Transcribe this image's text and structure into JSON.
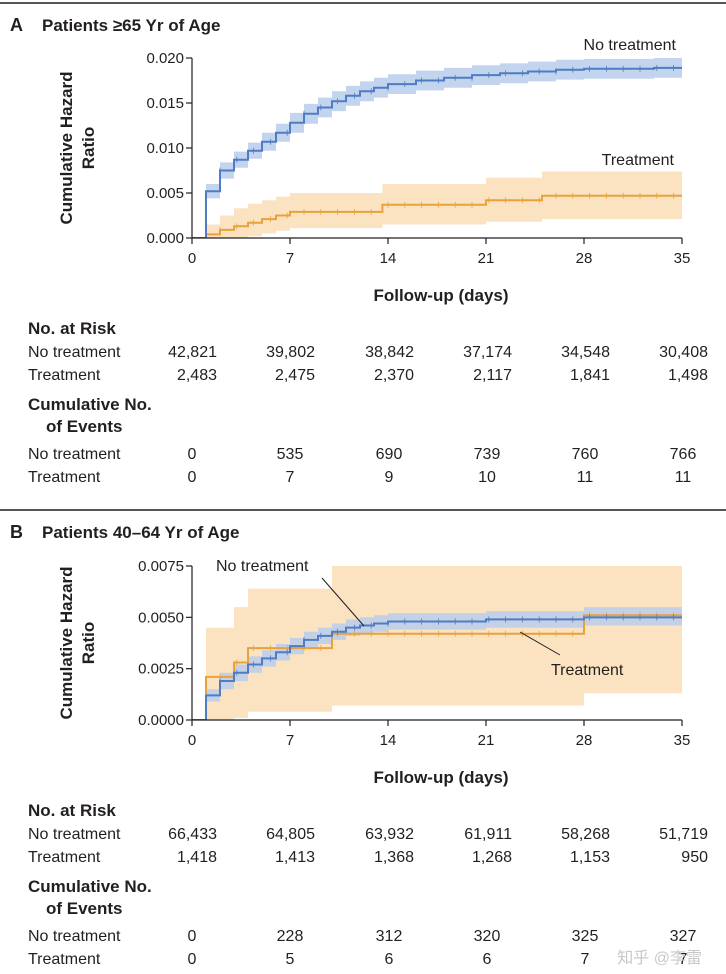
{
  "panels": [
    {
      "letter": "A",
      "title": "Patients ≥65 Yr of Age",
      "chart_data": {
        "type": "line",
        "ylabel": "Cumulative Hazard Ratio",
        "xlabel": "Follow-up (days)",
        "xlim": [
          0,
          35
        ],
        "ylim": [
          0,
          0.02
        ],
        "xticks": [
          0,
          7,
          14,
          21,
          28,
          35
        ],
        "yticks": [
          "0.000",
          "0.005",
          "0.010",
          "0.015",
          "0.020"
        ],
        "yvals": [
          0,
          0.005,
          0.01,
          0.015,
          0.02
        ],
        "series": [
          {
            "name": "No treatment",
            "color": "#4f7cc2",
            "band_color": "#b8cdeb",
            "steps": [
              [
                0,
                0
              ],
              [
                1,
                0.0052
              ],
              [
                2,
                0.0075
              ],
              [
                3,
                0.0087
              ],
              [
                4,
                0.0097
              ],
              [
                5,
                0.0107
              ],
              [
                6,
                0.0117
              ],
              [
                7,
                0.0128
              ],
              [
                8,
                0.0138
              ],
              [
                9,
                0.0145
              ],
              [
                10,
                0.0152
              ],
              [
                11,
                0.0158
              ],
              [
                12,
                0.0163
              ],
              [
                13,
                0.0167
              ],
              [
                14,
                0.0171
              ],
              [
                16,
                0.0175
              ],
              [
                18,
                0.0178
              ],
              [
                20,
                0.0181
              ],
              [
                22,
                0.0183
              ],
              [
                24,
                0.0185
              ],
              [
                26,
                0.0187
              ],
              [
                28,
                0.0188
              ],
              [
                31,
                0.0188
              ],
              [
                33,
                0.0189
              ],
              [
                35,
                0.0189
              ]
            ],
            "lower": [
              [
                0,
                0
              ],
              [
                1,
                0.0044
              ],
              [
                2,
                0.0066
              ],
              [
                3,
                0.0078
              ],
              [
                4,
                0.0088
              ],
              [
                5,
                0.0097
              ],
              [
                6,
                0.0107
              ],
              [
                7,
                0.0117
              ],
              [
                8,
                0.0127
              ],
              [
                9,
                0.0134
              ],
              [
                10,
                0.0141
              ],
              [
                11,
                0.0147
              ],
              [
                12,
                0.0152
              ],
              [
                13,
                0.0156
              ],
              [
                14,
                0.016
              ],
              [
                16,
                0.0164
              ],
              [
                18,
                0.0167
              ],
              [
                20,
                0.017
              ],
              [
                22,
                0.0172
              ],
              [
                24,
                0.0174
              ],
              [
                26,
                0.0176
              ],
              [
                28,
                0.0177
              ],
              [
                31,
                0.0177
              ],
              [
                33,
                0.0178
              ],
              [
                35,
                0.0178
              ]
            ],
            "upper": [
              [
                0,
                0
              ],
              [
                1,
                0.006
              ],
              [
                2,
                0.0084
              ],
              [
                3,
                0.0096
              ],
              [
                4,
                0.0106
              ],
              [
                5,
                0.0117
              ],
              [
                6,
                0.0127
              ],
              [
                7,
                0.0139
              ],
              [
                8,
                0.0149
              ],
              [
                9,
                0.0156
              ],
              [
                10,
                0.0163
              ],
              [
                11,
                0.0169
              ],
              [
                12,
                0.0174
              ],
              [
                13,
                0.0178
              ],
              [
                14,
                0.0182
              ],
              [
                16,
                0.0186
              ],
              [
                18,
                0.0189
              ],
              [
                20,
                0.0192
              ],
              [
                22,
                0.0194
              ],
              [
                24,
                0.0196
              ],
              [
                26,
                0.0198
              ],
              [
                28,
                0.0199
              ],
              [
                31,
                0.0199
              ],
              [
                33,
                0.02
              ],
              [
                35,
                0.02
              ]
            ],
            "label": "No treatment"
          },
          {
            "name": "Treatment",
            "color": "#e8a23c",
            "band_color": "#fbe0bb",
            "steps": [
              [
                0,
                0
              ],
              [
                1,
                0.0004
              ],
              [
                2,
                0.0009
              ],
              [
                3,
                0.0013
              ],
              [
                4,
                0.0017
              ],
              [
                5,
                0.0021
              ],
              [
                6,
                0.0025
              ],
              [
                7,
                0.0029
              ],
              [
                13.6,
                0.0037
              ],
              [
                21,
                0.0042
              ],
              [
                25,
                0.0047
              ],
              [
                35,
                0.0047
              ]
            ],
            "lower": [
              [
                0,
                0
              ],
              [
                1,
                0
              ],
              [
                2,
                0
              ],
              [
                3,
                0
              ],
              [
                4,
                0.0002
              ],
              [
                5,
                0.0005
              ],
              [
                6,
                0.0008
              ],
              [
                7,
                0.0011
              ],
              [
                13.6,
                0.0015
              ],
              [
                21,
                0.0018
              ],
              [
                25,
                0.0021
              ],
              [
                35,
                0.0021
              ]
            ],
            "upper": [
              [
                0,
                0
              ],
              [
                1,
                0.0015
              ],
              [
                2,
                0.0025
              ],
              [
                3,
                0.0033
              ],
              [
                4,
                0.0038
              ],
              [
                5,
                0.0042
              ],
              [
                6,
                0.0046
              ],
              [
                7,
                0.005
              ],
              [
                13.6,
                0.006
              ],
              [
                21,
                0.0067
              ],
              [
                25,
                0.0074
              ],
              [
                35,
                0.0074
              ]
            ],
            "label": "Treatment"
          }
        ]
      },
      "table": {
        "risk_header": "No. at Risk",
        "events_header_line1": "Cumulative No.",
        "events_header_line2": "of Events",
        "rows_risk": [
          {
            "label": "No treatment",
            "values": [
              "42,821",
              "39,802",
              "38,842",
              "37,174",
              "34,548",
              "30,408"
            ]
          },
          {
            "label": "Treatment",
            "values": [
              "2,483",
              "2,475",
              "2,370",
              "2,117",
              "1,841",
              "1,498"
            ]
          }
        ],
        "rows_events": [
          {
            "label": "No treatment",
            "values": [
              "0",
              "535",
              "690",
              "739",
              "760",
              "766"
            ]
          },
          {
            "label": "Treatment",
            "values": [
              "0",
              "7",
              "9",
              "10",
              "11",
              "11"
            ]
          }
        ]
      }
    },
    {
      "letter": "B",
      "title": "Patients 40–64 Yr of Age",
      "chart_data": {
        "type": "line",
        "ylabel": "Cumulative Hazard Ratio",
        "xlabel": "Follow-up (days)",
        "xlim": [
          0,
          35
        ],
        "ylim": [
          0,
          0.0075
        ],
        "xticks": [
          0,
          7,
          14,
          21,
          28,
          35
        ],
        "yticks": [
          "0.0000",
          "0.0025",
          "0.0050",
          "0.0075"
        ],
        "yvals": [
          0,
          0.0025,
          0.005,
          0.0075
        ],
        "series": [
          {
            "name": "No treatment",
            "color": "#4f7cc2",
            "band_color": "#b8cdeb",
            "steps": [
              [
                0,
                0
              ],
              [
                1,
                0.0012
              ],
              [
                2,
                0.0019
              ],
              [
                3,
                0.0023
              ],
              [
                4,
                0.0027
              ],
              [
                5,
                0.003
              ],
              [
                6,
                0.0033
              ],
              [
                7,
                0.0036
              ],
              [
                8,
                0.0039
              ],
              [
                9,
                0.0041
              ],
              [
                10,
                0.0043
              ],
              [
                11,
                0.0045
              ],
              [
                12,
                0.0046
              ],
              [
                13,
                0.0047
              ],
              [
                14,
                0.0048
              ],
              [
                17,
                0.0048
              ],
              [
                21,
                0.0049
              ],
              [
                28,
                0.005
              ],
              [
                35,
                0.005
              ]
            ],
            "lower": [
              [
                0,
                0
              ],
              [
                1,
                0.0009
              ],
              [
                2,
                0.0015
              ],
              [
                3,
                0.0019
              ],
              [
                4,
                0.0023
              ],
              [
                5,
                0.0026
              ],
              [
                6,
                0.0029
              ],
              [
                7,
                0.0032
              ],
              [
                8,
                0.0035
              ],
              [
                9,
                0.0037
              ],
              [
                10,
                0.0039
              ],
              [
                11,
                0.0041
              ],
              [
                12,
                0.0042
              ],
              [
                13,
                0.0043
              ],
              [
                14,
                0.0044
              ],
              [
                17,
                0.0044
              ],
              [
                21,
                0.0045
              ],
              [
                28,
                0.0046
              ],
              [
                35,
                0.0046
              ]
            ],
            "upper": [
              [
                0,
                0
              ],
              [
                1,
                0.0015
              ],
              [
                2,
                0.0023
              ],
              [
                3,
                0.0027
              ],
              [
                4,
                0.0031
              ],
              [
                5,
                0.0034
              ],
              [
                6,
                0.0037
              ],
              [
                7,
                0.004
              ],
              [
                8,
                0.0043
              ],
              [
                9,
                0.0045
              ],
              [
                10,
                0.0047
              ],
              [
                11,
                0.0049
              ],
              [
                12,
                0.005
              ],
              [
                13,
                0.0051
              ],
              [
                14,
                0.0052
              ],
              [
                17,
                0.0052
              ],
              [
                21,
                0.0053
              ],
              [
                28,
                0.0055
              ],
              [
                35,
                0.0055
              ]
            ],
            "label": "No treatment"
          },
          {
            "name": "Treatment",
            "color": "#e8a23c",
            "band_color": "#fbe0bb",
            "steps": [
              [
                0,
                0
              ],
              [
                1,
                0.0021
              ],
              [
                3,
                0.0028
              ],
              [
                4,
                0.0035
              ],
              [
                10,
                0.0042
              ],
              [
                28,
                0.0051
              ],
              [
                35,
                0.0051
              ]
            ],
            "lower": [
              [
                0,
                0
              ],
              [
                1,
                0
              ],
              [
                3,
                0.0001
              ],
              [
                4,
                0.0004
              ],
              [
                10,
                0.0007
              ],
              [
                28,
                0.0013
              ],
              [
                35,
                0.0013
              ]
            ],
            "upper": [
              [
                0,
                0
              ],
              [
                1,
                0.0045
              ],
              [
                3,
                0.0055
              ],
              [
                4,
                0.0064
              ],
              [
                10,
                0.0075
              ],
              [
                28,
                0.009
              ],
              [
                35,
                0.009
              ]
            ],
            "label": "Treatment"
          }
        ]
      },
      "table": {
        "risk_header": "No. at Risk",
        "events_header_line1": "Cumulative No.",
        "events_header_line2": "of Events",
        "rows_risk": [
          {
            "label": "No treatment",
            "values": [
              "66,433",
              "64,805",
              "63,932",
              "61,911",
              "58,268",
              "51,719"
            ]
          },
          {
            "label": "Treatment",
            "values": [
              "1,418",
              "1,413",
              "1,368",
              "1,268",
              "1,153",
              "950"
            ]
          }
        ],
        "rows_events": [
          {
            "label": "No treatment",
            "values": [
              "0",
              "228",
              "312",
              "320",
              "325",
              "327"
            ]
          },
          {
            "label": "Treatment",
            "values": [
              "0",
              "5",
              "6",
              "6",
              "7",
              "7"
            ]
          }
        ]
      }
    }
  ],
  "watermark": "知乎 @李雷"
}
